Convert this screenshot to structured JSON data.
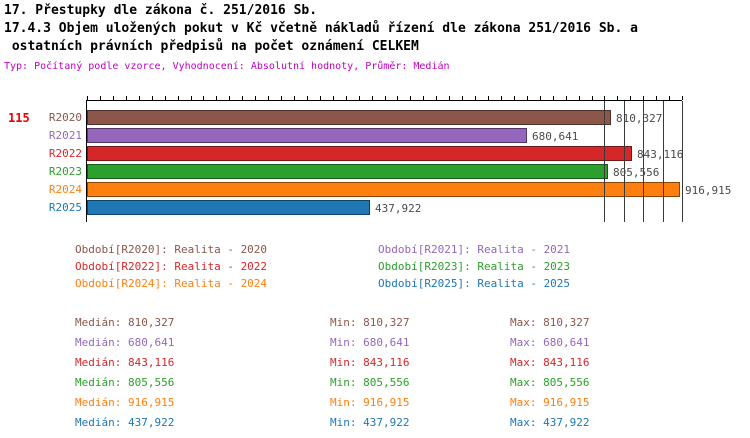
{
  "header": {
    "title_line1": "17. Přestupky dle zákona č. 251/2016 Sb.",
    "title_line2": "17.4.3 Objem uložených pokut v Kč včetně nákladů řízení dle zákona 251/2016 Sb. a",
    "title_line3": " ostatních právních předpisů na počet oznámení CELKEM",
    "meta_line": "Typ: Počítaný podle vzorce, Vyhodnocení: Absolutní hodnoty, Průměr: Medián",
    "indicator_number": "115"
  },
  "chart_data": {
    "type": "bar",
    "orientation": "horizontal",
    "title": "17.4.3 Objem uložených pokut v Kč včetně nákladů řízení dle zákona 251/2016 Sb. a ostatních právních předpisů na počet oznámení CELKEM",
    "categories": [
      "R2020",
      "R2021",
      "R2022",
      "R2023",
      "R2024",
      "R2025"
    ],
    "values": [
      810327,
      680641,
      843116,
      805556,
      916915,
      437922
    ],
    "value_labels": [
      "810,327",
      "680,641",
      "843,116",
      "805,556",
      "916,915",
      "437,922"
    ],
    "colors": [
      "#8C564B",
      "#9467BD",
      "#D62728",
      "#2CA02C",
      "#FF7F0E",
      "#1F77B4"
    ],
    "xlim": [
      0,
      920000
    ],
    "grid_values": [
      800000,
      830000,
      860000,
      890000,
      920000
    ],
    "minor_tick_step": 20000,
    "grid": "partial-right",
    "legend_position": "bottom"
  },
  "legend": {
    "items": [
      {
        "label": "Období[R2020]: Realita - 2020",
        "color": "#8C564B"
      },
      {
        "label": "Období[R2021]: Realita - 2021",
        "color": "#9467BD"
      },
      {
        "label": "Období[R2022]: Realita - 2022",
        "color": "#D62728"
      },
      {
        "label": "Období[R2023]: Realita - 2023",
        "color": "#2CA02C"
      },
      {
        "label": "Období[R2024]: Realita - 2024",
        "color": "#FF7F0E"
      },
      {
        "label": "Období[R2025]: Realita - 2025",
        "color": "#1F77B4"
      }
    ]
  },
  "stats": {
    "rows": [
      {
        "median": "Medián: 810,327",
        "min": "Min: 810,327",
        "max": "Max: 810,327",
        "color": "#8C564B"
      },
      {
        "median": "Medián: 680,641",
        "min": "Min: 680,641",
        "max": "Max: 680,641",
        "color": "#9467BD"
      },
      {
        "median": "Medián: 843,116",
        "min": "Min: 843,116",
        "max": "Max: 843,116",
        "color": "#D62728"
      },
      {
        "median": "Medián: 805,556",
        "min": "Min: 805,556",
        "max": "Max: 805,556",
        "color": "#2CA02C"
      },
      {
        "median": "Medián: 916,915",
        "min": "Min: 916,915",
        "max": "Max: 916,915",
        "color": "#FF7F0E"
      },
      {
        "median": "Medián: 437,922",
        "min": "Min: 437,922",
        "max": "Max: 437,922",
        "color": "#1F77B4"
      }
    ]
  }
}
